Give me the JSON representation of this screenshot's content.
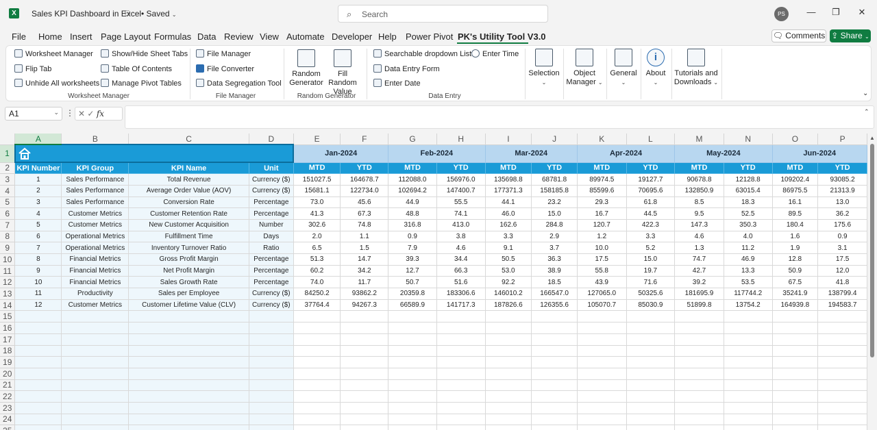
{
  "titlebar": {
    "app_icon": "excel-icon",
    "doc_title": "Sales KPI Dashboard in Excel",
    "saved": "• Saved",
    "search_placeholder": "Search",
    "avatar": "PS"
  },
  "menu": {
    "items": [
      "File",
      "Home",
      "Insert",
      "Page Layout",
      "Formulas",
      "Data",
      "Review",
      "View",
      "Automate",
      "Developer",
      "Help",
      "Power Pivot",
      "PK's Utility Tool V3.0"
    ],
    "active": "PK's Utility Tool V3.0",
    "comments": "Comments",
    "share": "Share"
  },
  "ribbon": {
    "worksheet_manager": {
      "items": [
        "Worksheet Manager",
        "Show/Hide Sheet Tabs",
        "Flip Tab",
        "Table Of Contents",
        "Unhide All worksheets",
        "Manage Pivot Tables"
      ],
      "label": "Worksheet Manager"
    },
    "file_manager": {
      "items": [
        "File Manager",
        "File Converter",
        "Data Segregation Tool"
      ],
      "label": "File Manager"
    },
    "random_generator": {
      "items": [
        "Random Generator",
        "Fill Random Value"
      ],
      "label": "Random Generator"
    },
    "data_entry": {
      "items": [
        "Searchable dropdown List",
        "Enter Time",
        "Data Entry Form",
        "Enter Date"
      ],
      "label": "Data Entry"
    },
    "big_buttons": [
      "Selection",
      "Object Manager",
      "General",
      "About",
      "Tutorials and Downloads"
    ]
  },
  "formula_bar": {
    "name_box": "A1",
    "fx": "fx",
    "value": ""
  },
  "sheet": {
    "columns": [
      "A",
      "B",
      "C",
      "D",
      "E",
      "F",
      "G",
      "H",
      "I",
      "J",
      "K",
      "L",
      "M",
      "N",
      "O",
      "P"
    ],
    "months": [
      "Jan-2024",
      "Feb-2024",
      "Mar-2024",
      "Apr-2024",
      "May-2024",
      "Jun-2024"
    ],
    "headers": [
      "KPI Number",
      "KPI Group",
      "KPI Name",
      "Unit",
      "MTD",
      "YTD",
      "MTD",
      "YTD",
      "MTD",
      "YTD",
      "MTD",
      "YTD",
      "MTD",
      "YTD",
      "MTD",
      "YTD"
    ],
    "rows": [
      [
        "1",
        "Sales Performance",
        "Total Revenue",
        "Currency ($)",
        "151027.5",
        "164678.7",
        "112088.0",
        "156976.0",
        "135698.8",
        "68781.8",
        "89974.5",
        "19127.7",
        "90678.8",
        "12128.8",
        "109202.4",
        "93085.2"
      ],
      [
        "2",
        "Sales Performance",
        "Average Order Value (AOV)",
        "Currency ($)",
        "15681.1",
        "122734.0",
        "102694.2",
        "147400.7",
        "177371.3",
        "158185.8",
        "85599.6",
        "70695.6",
        "132850.9",
        "63015.4",
        "86975.5",
        "21313.9"
      ],
      [
        "3",
        "Sales Performance",
        "Conversion Rate",
        "Percentage",
        "73.0",
        "45.6",
        "44.9",
        "55.5",
        "44.1",
        "23.2",
        "29.3",
        "61.8",
        "8.5",
        "18.3",
        "16.1",
        "13.0"
      ],
      [
        "4",
        "Customer Metrics",
        "Customer Retention Rate",
        "Percentage",
        "41.3",
        "67.3",
        "48.8",
        "74.1",
        "46.0",
        "15.0",
        "16.7",
        "44.5",
        "9.5",
        "52.5",
        "89.5",
        "36.2"
      ],
      [
        "5",
        "Customer Metrics",
        "New Customer Acquisition",
        "Number",
        "302.6",
        "74.8",
        "316.8",
        "413.0",
        "162.6",
        "284.8",
        "120.7",
        "422.3",
        "147.3",
        "350.3",
        "180.4",
        "175.6"
      ],
      [
        "6",
        "Operational Metrics",
        "Fulfillment Time",
        "Days",
        "2.0",
        "1.1",
        "0.9",
        "3.8",
        "3.3",
        "2.9",
        "1.2",
        "3.3",
        "4.6",
        "4.0",
        "1.6",
        "0.9"
      ],
      [
        "7",
        "Operational Metrics",
        "Inventory Turnover Ratio",
        "Ratio",
        "6.5",
        "1.5",
        "7.9",
        "4.6",
        "9.1",
        "3.7",
        "10.0",
        "5.2",
        "1.3",
        "11.2",
        "1.9",
        "3.1"
      ],
      [
        "8",
        "Financial Metrics",
        "Gross Profit Margin",
        "Percentage",
        "51.3",
        "14.7",
        "39.3",
        "34.4",
        "50.5",
        "36.3",
        "17.5",
        "15.0",
        "74.7",
        "46.9",
        "12.8",
        "17.5"
      ],
      [
        "9",
        "Financial Metrics",
        "Net Profit Margin",
        "Percentage",
        "60.2",
        "34.2",
        "12.7",
        "66.3",
        "53.0",
        "38.9",
        "55.8",
        "19.7",
        "42.7",
        "13.3",
        "50.9",
        "12.0"
      ],
      [
        "10",
        "Financial Metrics",
        "Sales Growth Rate",
        "Percentage",
        "74.0",
        "11.7",
        "50.7",
        "51.6",
        "92.2",
        "18.5",
        "43.9",
        "71.6",
        "39.2",
        "53.5",
        "67.5",
        "41.8"
      ],
      [
        "11",
        "Productivity",
        "Sales per Employee",
        "Currency ($)",
        "84250.2",
        "93862.2",
        "20359.8",
        "183306.6",
        "146010.2",
        "166547.0",
        "127065.0",
        "50325.6",
        "181695.9",
        "117744.2",
        "35241.9",
        "138799.4"
      ],
      [
        "12",
        "Customer Metrics",
        "Customer Lifetime Value (CLV)",
        "Currency ($)",
        "37764.4",
        "94267.3",
        "66589.9",
        "141717.3",
        "187826.6",
        "126355.6",
        "105070.7",
        "85030.9",
        "51899.8",
        "13754.2",
        "164939.8",
        "194583.7"
      ]
    ],
    "row_numbers": [
      "1",
      "2",
      "3",
      "4",
      "5",
      "6",
      "7",
      "8",
      "9",
      "10",
      "11",
      "12",
      "13",
      "14",
      "15",
      "16",
      "17",
      "18",
      "19",
      "20",
      "21",
      "22",
      "23",
      "24",
      "25"
    ]
  },
  "colors": {
    "excel_green": "#107c41",
    "header_blue": "#1a9bd7",
    "month_blue": "#b8d7f0",
    "left_block": "#eef7fc"
  }
}
